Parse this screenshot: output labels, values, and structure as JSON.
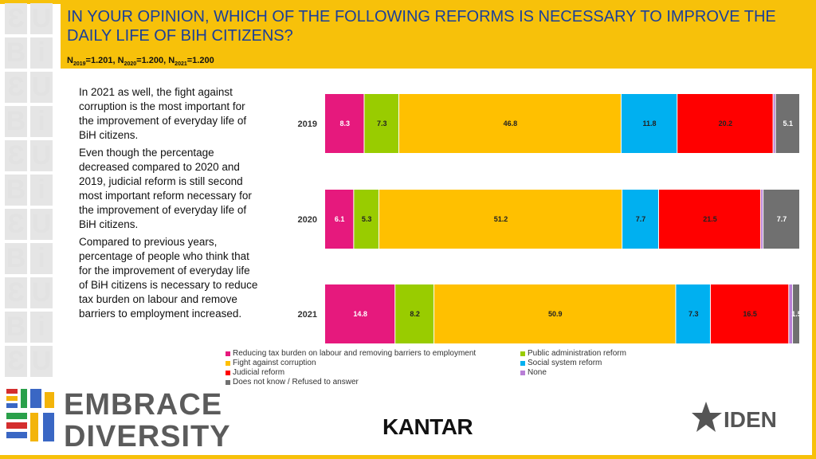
{
  "header": {
    "title": "IN YOUR OPINION, WHICH OF THE FOLLOWING REFORMS IS NECESSARY TO IMPROVE THE DAILY LIFE OF BIH CITIZENS?",
    "n_line": [
      {
        "label": "N",
        "sub": "2019",
        "value": "=1.201, "
      },
      {
        "label": "N",
        "sub": "2020",
        "value": "=1.200, "
      },
      {
        "label": "N",
        "sub": "2021",
        "value": "=1.200"
      }
    ]
  },
  "commentary": [
    "In 2021 as well, the fight against corruption is the most important for the improvement of everyday life of BiH citizens.",
    "Even though the percentage decreased compared to 2020 and 2019, judicial reform is still second most important reform necessary for the improvement of everyday life of BiH citizens.",
    "Compared to previous years, percentage of people who think that for the improvement of everyday life of BiH citizens is necessary to reduce tax burden on labour and remove barriers to employment increased."
  ],
  "chart_data": {
    "type": "bar",
    "orientation": "horizontal",
    "stacked": true,
    "categories": [
      "2019",
      "2020",
      "2021"
    ],
    "series": [
      {
        "name": "Reducing tax burden on labour and removing barriers to employment",
        "color": "#e6197d",
        "values": [
          8.3,
          6.1,
          14.8
        ]
      },
      {
        "name": "Public administration reform",
        "color": "#99cc00",
        "values": [
          7.3,
          5.3,
          8.2
        ]
      },
      {
        "name": "Fight against corruption",
        "color": "#ffc000",
        "values": [
          46.8,
          51.2,
          50.9
        ]
      },
      {
        "name": "Social system reform",
        "color": "#00b0f0",
        "values": [
          11.8,
          7.7,
          7.3
        ]
      },
      {
        "name": "Judicial reform",
        "color": "#ff0000",
        "values": [
          20.2,
          21.5,
          16.5
        ]
      },
      {
        "name": "None",
        "color": "#b97fd6",
        "values": [
          0.5,
          0.5,
          0.8
        ]
      },
      {
        "name": "Does not know / Refused to answer",
        "color": "#707070",
        "values": [
          5.1,
          7.7,
          1.5
        ]
      }
    ],
    "data_labels": [
      [
        "8.3",
        "7.3",
        "46.8",
        "11.8",
        "20.2",
        "",
        "5.1"
      ],
      [
        "6.1",
        "5.3",
        "51.2",
        "7.7",
        "21.5",
        "",
        "7.7"
      ],
      [
        "14.8",
        "8.2",
        "50.9",
        "7.3",
        "16.5",
        "",
        "1.5"
      ]
    ],
    "xlim": [
      0,
      100
    ],
    "legend_position": "bottom",
    "grid": false
  },
  "logos": {
    "embrace_line1": "EMBRACE",
    "embrace_line2": "DIVERSITY",
    "kantar": "KANTAR",
    "iden": "IDEN"
  },
  "colors": {
    "accent": "#f7c10a",
    "title": "#1a3f9a"
  }
}
